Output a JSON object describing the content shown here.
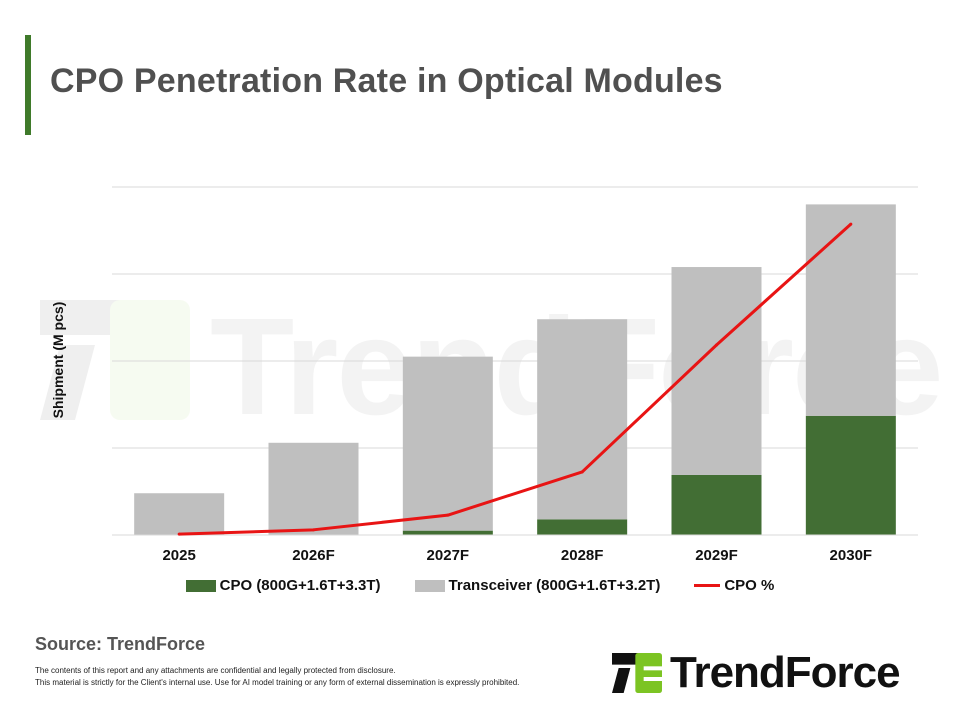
{
  "title": "CPO Penetration Rate in Optical Modules",
  "watermark": "TrendForce",
  "chart_data": {
    "type": "bar",
    "stacked": true,
    "title": "CPO Penetration Rate in Optical Modules",
    "xlabel": "",
    "ylabel": "Shipment (M pcs)",
    "categories": [
      "2025",
      "2026F",
      "2027F",
      "2028F",
      "2029F",
      "2030F"
    ],
    "ylim": [
      0,
      4
    ],
    "y_ticks_labeled": false,
    "grid": true,
    "legend_position": "bottom",
    "series": [
      {
        "name": "CPO (800G+1.6T+3.3T)",
        "type": "bar",
        "color": "#426e34",
        "values": [
          0,
          0,
          0.05,
          0.18,
          0.69,
          1.37
        ]
      },
      {
        "name": "Transceiver (800G+1.6T+3.2T)",
        "type": "bar",
        "color": "#bfbfbf",
        "values": [
          0.48,
          1.06,
          2.0,
          2.3,
          2.39,
          2.43
        ]
      },
      {
        "name": "CPO %",
        "type": "line",
        "axis": "secondary",
        "color": "#e81414",
        "values": [
          0.1,
          0.6,
          2.3,
          7.3,
          22,
          36
        ]
      }
    ],
    "y2lim": [
      0,
      40.3
    ]
  },
  "source": "Source: TrendForce",
  "disclaimer": [
    "The contents of this report and any attachments are confidential and legally protected from disclosure.",
    "This material is strictly for the Client's internal use. Use for AI model training or any form of external dissemination is expressly prohibited."
  ],
  "logo": {
    "text": "TrendForce",
    "colors": {
      "dark": "#111111",
      "green": "#7cc423"
    }
  }
}
